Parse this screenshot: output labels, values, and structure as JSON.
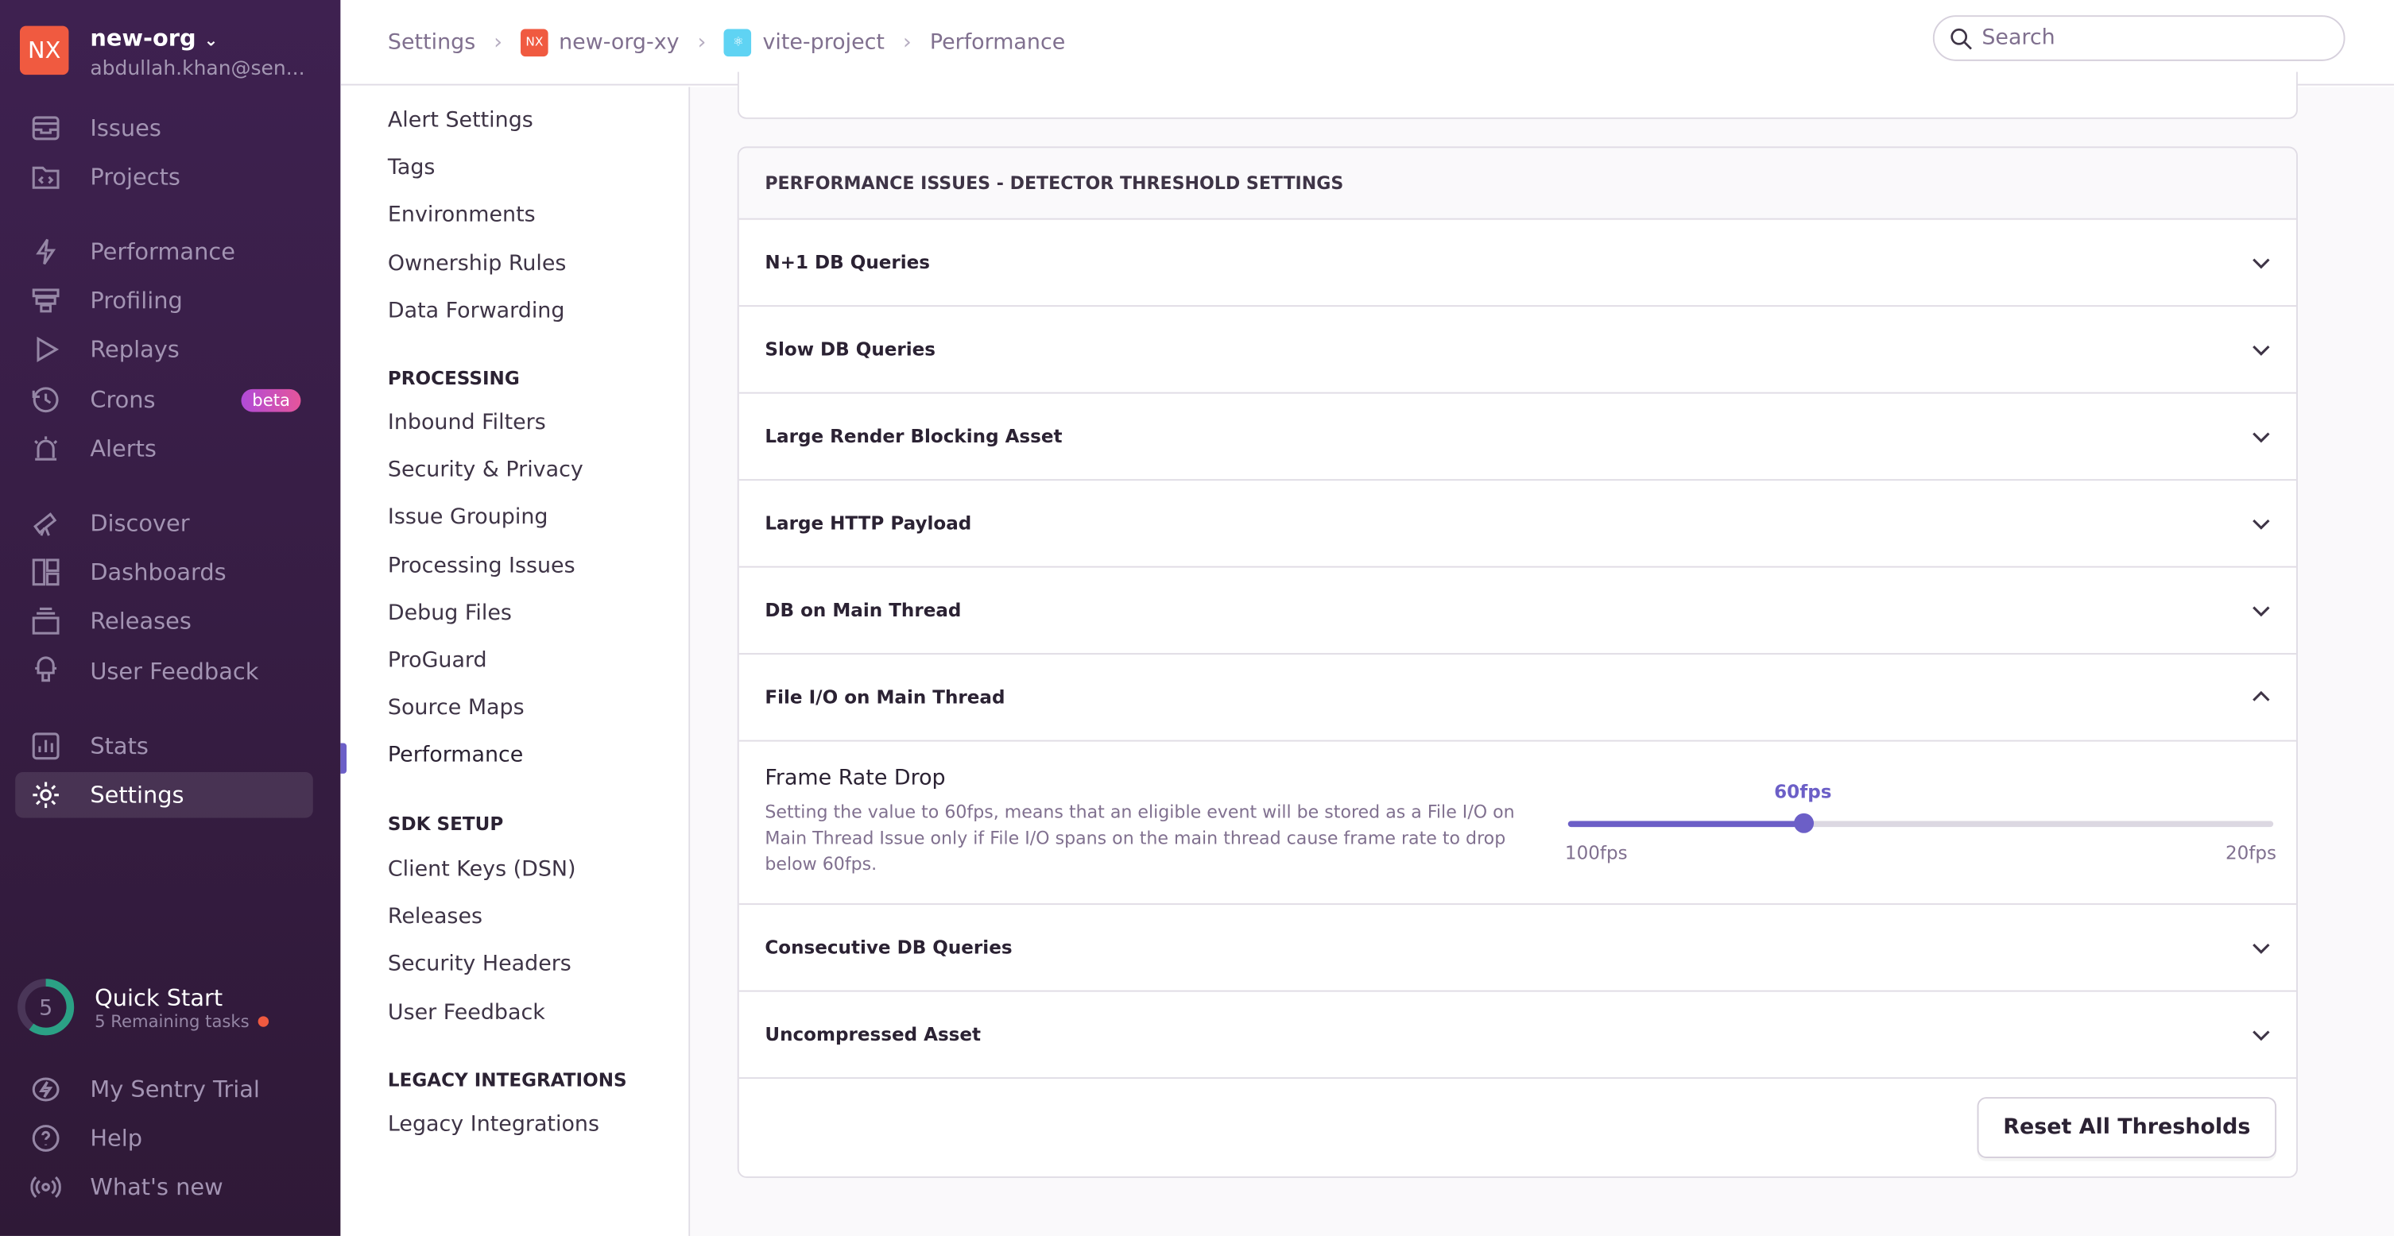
{
  "org": {
    "initials": "NX",
    "name": "new-org",
    "email": "abdullah.khan@sen...",
    "color": "#f05a40"
  },
  "sidebar": {
    "items": [
      {
        "label": "Issues",
        "icon": "inbox-icon"
      },
      {
        "label": "Projects",
        "icon": "folder-code-icon"
      },
      {
        "label": "Performance",
        "icon": "lightning-icon"
      },
      {
        "label": "Profiling",
        "icon": "profiling-icon"
      },
      {
        "label": "Replays",
        "icon": "play-icon"
      },
      {
        "label": "Crons",
        "icon": "clock-icon",
        "badge": "beta"
      },
      {
        "label": "Alerts",
        "icon": "siren-icon"
      },
      {
        "label": "Discover",
        "icon": "telescope-icon"
      },
      {
        "label": "Dashboards",
        "icon": "dashboard-icon"
      },
      {
        "label": "Releases",
        "icon": "releases-icon"
      },
      {
        "label": "User Feedback",
        "icon": "megaphone-icon"
      },
      {
        "label": "Stats",
        "icon": "stats-icon"
      },
      {
        "label": "Settings",
        "icon": "gear-icon",
        "active": true
      }
    ],
    "quick_start": {
      "count": "5",
      "title": "Quick Start",
      "subtitle": "5 Remaining tasks",
      "progress": 0.6
    },
    "bottom": [
      {
        "label": "My Sentry Trial",
        "icon": "lightning-circle-icon"
      },
      {
        "label": "Help",
        "icon": "question-icon"
      },
      {
        "label": "What's new",
        "icon": "broadcast-icon"
      }
    ]
  },
  "breadcrumb": {
    "settings": "Settings",
    "org": "new-org-xy",
    "org_badge": "NX",
    "project": "vite-project",
    "page": "Performance"
  },
  "search": {
    "placeholder": "Search"
  },
  "subnav": {
    "items1": [
      "Alert Settings",
      "Tags",
      "Environments",
      "Ownership Rules",
      "Data Forwarding"
    ],
    "processing_head": "PROCESSING",
    "items2": [
      "Inbound Filters",
      "Security & Privacy",
      "Issue Grouping",
      "Processing Issues",
      "Debug Files",
      "ProGuard",
      "Source Maps",
      "Performance"
    ],
    "sdk_head": "SDK SETUP",
    "items3": [
      "Client Keys (DSN)",
      "Releases",
      "Security Headers",
      "User Feedback"
    ],
    "legacy_head": "LEGACY INTEGRATIONS",
    "items4": [
      "Legacy Integrations"
    ],
    "active": "Performance"
  },
  "panel": {
    "title": "PERFORMANCE ISSUES - DETECTOR THRESHOLD SETTINGS",
    "rows_before": [
      "N+1 DB Queries",
      "Slow DB Queries",
      "Large Render Blocking Asset",
      "Large HTTP Payload",
      "DB on Main Thread"
    ],
    "expanded_row": "File I/O on Main Thread",
    "setting": {
      "title": "Frame Rate Drop",
      "description": "Setting the value to 60fps, means that an eligible event will be stored as a File I/O on Main Thread Issue only if File I/O spans on the main thread cause frame rate to drop below 60fps.",
      "value": "60fps",
      "min_label": "100fps",
      "max_label": "20fps",
      "fill_fraction": 0.333
    },
    "rows_after": [
      "Consecutive DB Queries",
      "Uncompressed Asset"
    ],
    "reset_label": "Reset All Thresholds"
  },
  "colors": {
    "accent": "#6c5fc7",
    "sidebar": "#3e2150",
    "quickstart": "#2ba185"
  }
}
